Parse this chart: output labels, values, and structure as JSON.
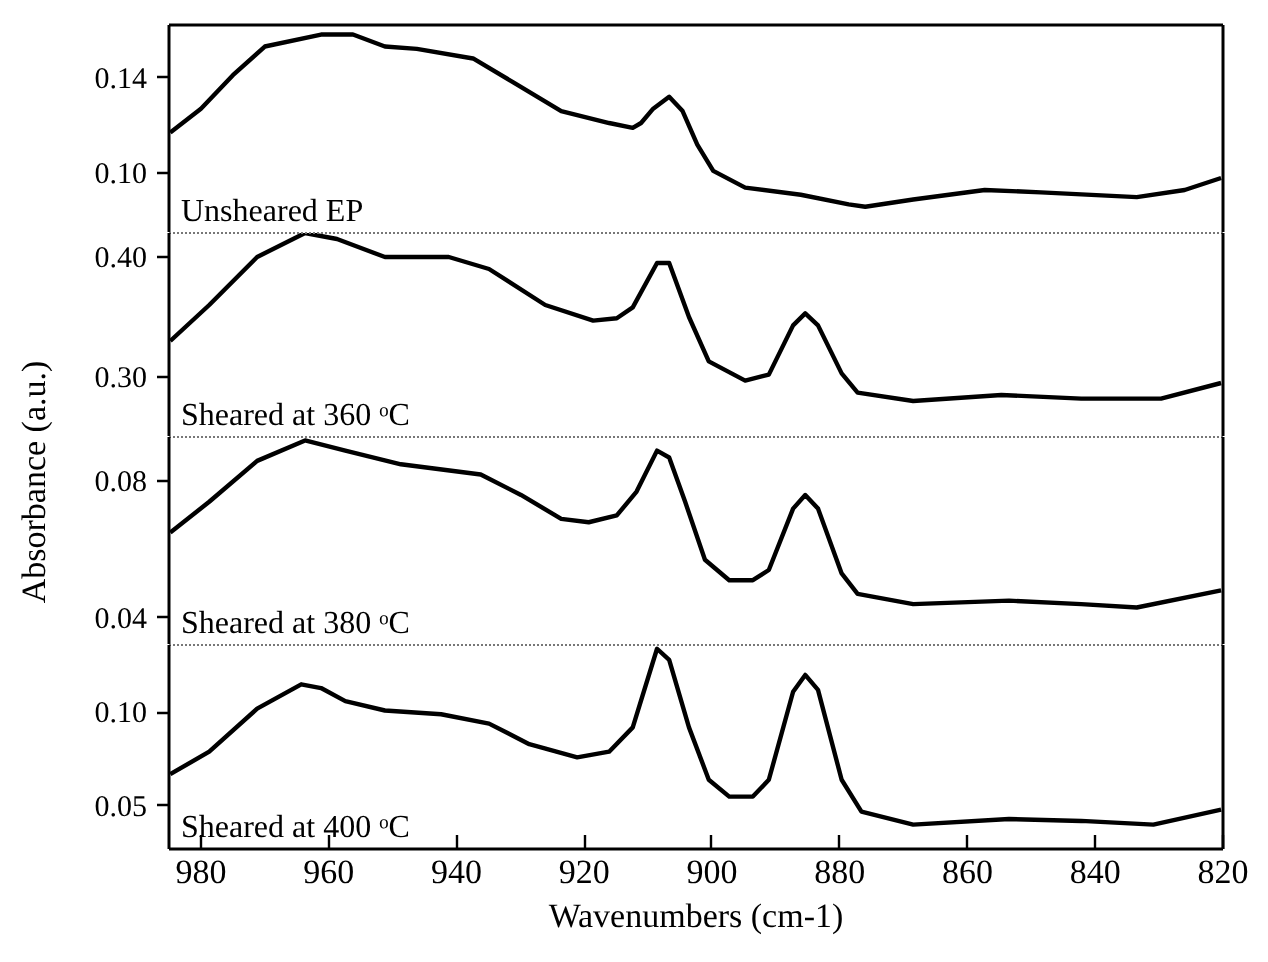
{
  "chart_data": [
    {
      "type": "line",
      "ylabel": "Absorbance (a.u.)",
      "xlim": [
        985,
        820
      ],
      "ylim": [
        0.075,
        0.162
      ],
      "yticks": [
        {
          "value": 0.1,
          "label": "0.10"
        },
        0.14
      ],
      "tick_labels": "y",
      "series": [
        {
          "name": "Unsheared EP",
          "color": "#000000",
          "x": [
            984.8,
            980,
            975,
            970,
            961.2,
            956.2,
            951.2,
            946.2,
            937.4,
            931.1,
            923.6,
            916.1,
            912.4,
            911.1,
            909.2,
            906.7,
            904.6,
            902.3,
            899.8,
            894.8,
            886.1,
            878.6,
            876.0,
            868.5,
            857.3,
            848.5,
            833.5,
            826.0,
            820.3
          ],
          "values": [
            0.117,
            0.127,
            0.141,
            0.153,
            0.158,
            0.158,
            0.153,
            0.152,
            0.148,
            0.138,
            0.126,
            0.121,
            0.119,
            0.121,
            0.127,
            0.132,
            0.126,
            0.112,
            0.101,
            0.094,
            0.091,
            0.087,
            0.086,
            0.089,
            0.093,
            0.092,
            0.09,
            0.093,
            0.098
          ]
        }
      ]
    },
    {
      "type": "line",
      "xlim": [
        985,
        820
      ],
      "ylim": [
        0.25,
        0.42
      ],
      "yticks": [
        {
          "value": 0.3,
          "label": "0.30"
        },
        {
          "value": 0.4,
          "label": "0.40"
        }
      ],
      "tick_labels": "y",
      "series": [
        {
          "name": "Sheared at 360 ᵒC",
          "color": "#000000",
          "x": [
            984.8,
            978.7,
            971.2,
            963.7,
            958.7,
            951.2,
            941.2,
            934.9,
            926.1,
            918.6,
            914.9,
            912.4,
            908.6,
            906.7,
            903.6,
            900.5,
            894.8,
            891.1,
            887.3,
            885.4,
            883.4,
            879.7,
            877.2,
            868.5,
            854.7,
            842.2,
            829.7,
            820.3
          ],
          "values": [
            0.33,
            0.36,
            0.4,
            0.42,
            0.415,
            0.4,
            0.4,
            0.39,
            0.36,
            0.347,
            0.349,
            0.358,
            0.395,
            0.395,
            0.35,
            0.313,
            0.297,
            0.302,
            0.343,
            0.353,
            0.343,
            0.303,
            0.287,
            0.28,
            0.285,
            0.282,
            0.282,
            0.295
          ]
        }
      ]
    },
    {
      "type": "line",
      "xlim": [
        985,
        820
      ],
      "ylim": [
        0.032,
        0.093
      ],
      "yticks": [
        0.04,
        0.08
      ],
      "tick_labels": "y",
      "series": [
        {
          "name": "Sheared at 380 ᵒC",
          "color": "#000000",
          "x": [
            984.8,
            978.7,
            971.2,
            963.7,
            957.4,
            948.7,
            936.2,
            929.9,
            923.6,
            919.3,
            914.9,
            911.8,
            908.6,
            906.7,
            904.2,
            901.1,
            897.3,
            893.6,
            891.1,
            887.3,
            885.4,
            883.4,
            879.7,
            877.2,
            868.5,
            853.5,
            842.2,
            833.5,
            820.3
          ],
          "values": [
            0.065,
            0.074,
            0.086,
            0.092,
            0.089,
            0.085,
            0.082,
            0.076,
            0.069,
            0.068,
            0.07,
            0.077,
            0.089,
            0.087,
            0.074,
            0.057,
            0.051,
            0.051,
            0.054,
            0.072,
            0.076,
            0.072,
            0.053,
            0.047,
            0.044,
            0.045,
            0.044,
            0.043,
            0.048
          ]
        }
      ]
    },
    {
      "type": "line",
      "xlabel": "Wavenumbers (cm-1)",
      "xlim": [
        985,
        820
      ],
      "xticks": [
        980,
        960,
        940,
        920,
        900,
        880,
        860,
        840,
        820
      ],
      "ylim": [
        0.027,
        0.136
      ],
      "yticks": [
        0.05,
        {
          "value": 0.1,
          "label": "0.10"
        }
      ],
      "series": [
        {
          "name": "Sheared at 400 ᵒC",
          "color": "#000000",
          "x": [
            984.8,
            978.7,
            971.2,
            964.3,
            961.2,
            957.4,
            951.2,
            942.4,
            934.9,
            928.6,
            921.1,
            916.1,
            912.4,
            908.6,
            906.7,
            903.6,
            900.5,
            897.3,
            893.6,
            891.1,
            887.3,
            885.4,
            883.4,
            879.7,
            876.6,
            868.5,
            853.5,
            842.2,
            830.9,
            820.3
          ],
          "values": [
            0.067,
            0.079,
            0.102,
            0.115,
            0.113,
            0.106,
            0.101,
            0.099,
            0.094,
            0.083,
            0.076,
            0.079,
            0.092,
            0.134,
            0.128,
            0.092,
            0.064,
            0.055,
            0.055,
            0.064,
            0.111,
            0.12,
            0.112,
            0.064,
            0.047,
            0.04,
            0.043,
            0.042,
            0.04,
            0.048
          ]
        }
      ]
    }
  ]
}
